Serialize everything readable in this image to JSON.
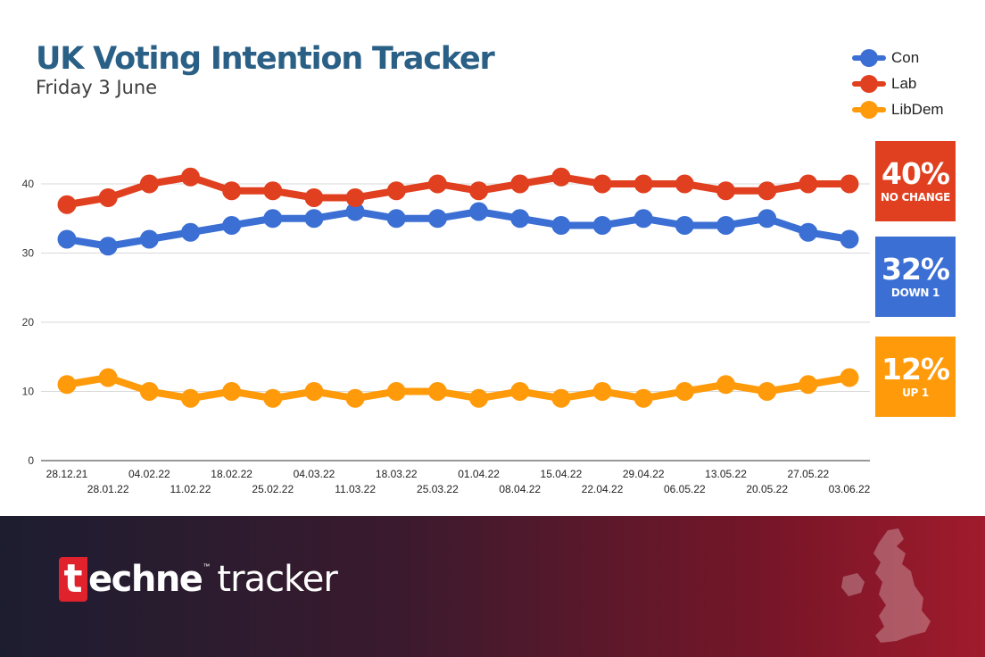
{
  "header": {
    "title": "UK Voting Intention Tracker",
    "subtitle": "Friday 3 June"
  },
  "legend": [
    {
      "label": "Con",
      "color": "#3b6fd4"
    },
    {
      "label": "Lab",
      "color": "#e0401f"
    },
    {
      "label": "LibDem",
      "color": "#ff9a0a"
    }
  ],
  "badges": {
    "lab": {
      "value": "40%",
      "change": "NO CHANGE",
      "color": "#e0401f"
    },
    "con": {
      "value": "32%",
      "change": "DOWN 1",
      "color": "#3b6fd4"
    },
    "libdem": {
      "value": "12%",
      "change": "UP 1",
      "color": "#ff9a0a"
    }
  },
  "chart_data": {
    "type": "line",
    "title": "UK Voting Intention Tracker",
    "subtitle": "Friday 3 June",
    "x": [
      "28.12.21",
      "28.01.22",
      "04.02.22",
      "11.02.22",
      "18.02.22",
      "25.02.22",
      "04.03.22",
      "11.03.22",
      "18.03.22",
      "25.03.22",
      "01.04.22",
      "08.04.22",
      "15.04.22",
      "22.04.22",
      "29.04.22",
      "06.05.22",
      "13.05.22",
      "20.05.22",
      "27.05.22",
      "03.06.22"
    ],
    "series": [
      {
        "name": "Con",
        "color": "#3b6fd4",
        "values": [
          32,
          31,
          32,
          33,
          34,
          35,
          35,
          36,
          35,
          35,
          36,
          35,
          34,
          34,
          35,
          34,
          34,
          35,
          33,
          32
        ]
      },
      {
        "name": "Lab",
        "color": "#e0401f",
        "values": [
          37,
          38,
          40,
          41,
          39,
          39,
          38,
          38,
          39,
          40,
          39,
          40,
          41,
          40,
          40,
          40,
          39,
          39,
          40,
          40
        ]
      },
      {
        "name": "LibDem",
        "color": "#ff9a0a",
        "values": [
          11,
          12,
          10,
          9,
          10,
          9,
          10,
          9,
          10,
          10,
          9,
          10,
          9,
          10,
          9,
          10,
          11,
          10,
          11,
          12
        ]
      }
    ],
    "ylim": [
      0,
      40
    ],
    "yticks": [
      0,
      10,
      20,
      30,
      40
    ],
    "grid": true,
    "legend_position": "top-right"
  },
  "footer": {
    "brand_t": "t",
    "brand_word": "echne",
    "brand_tm": "™",
    "brand_tracker": "tracker"
  }
}
